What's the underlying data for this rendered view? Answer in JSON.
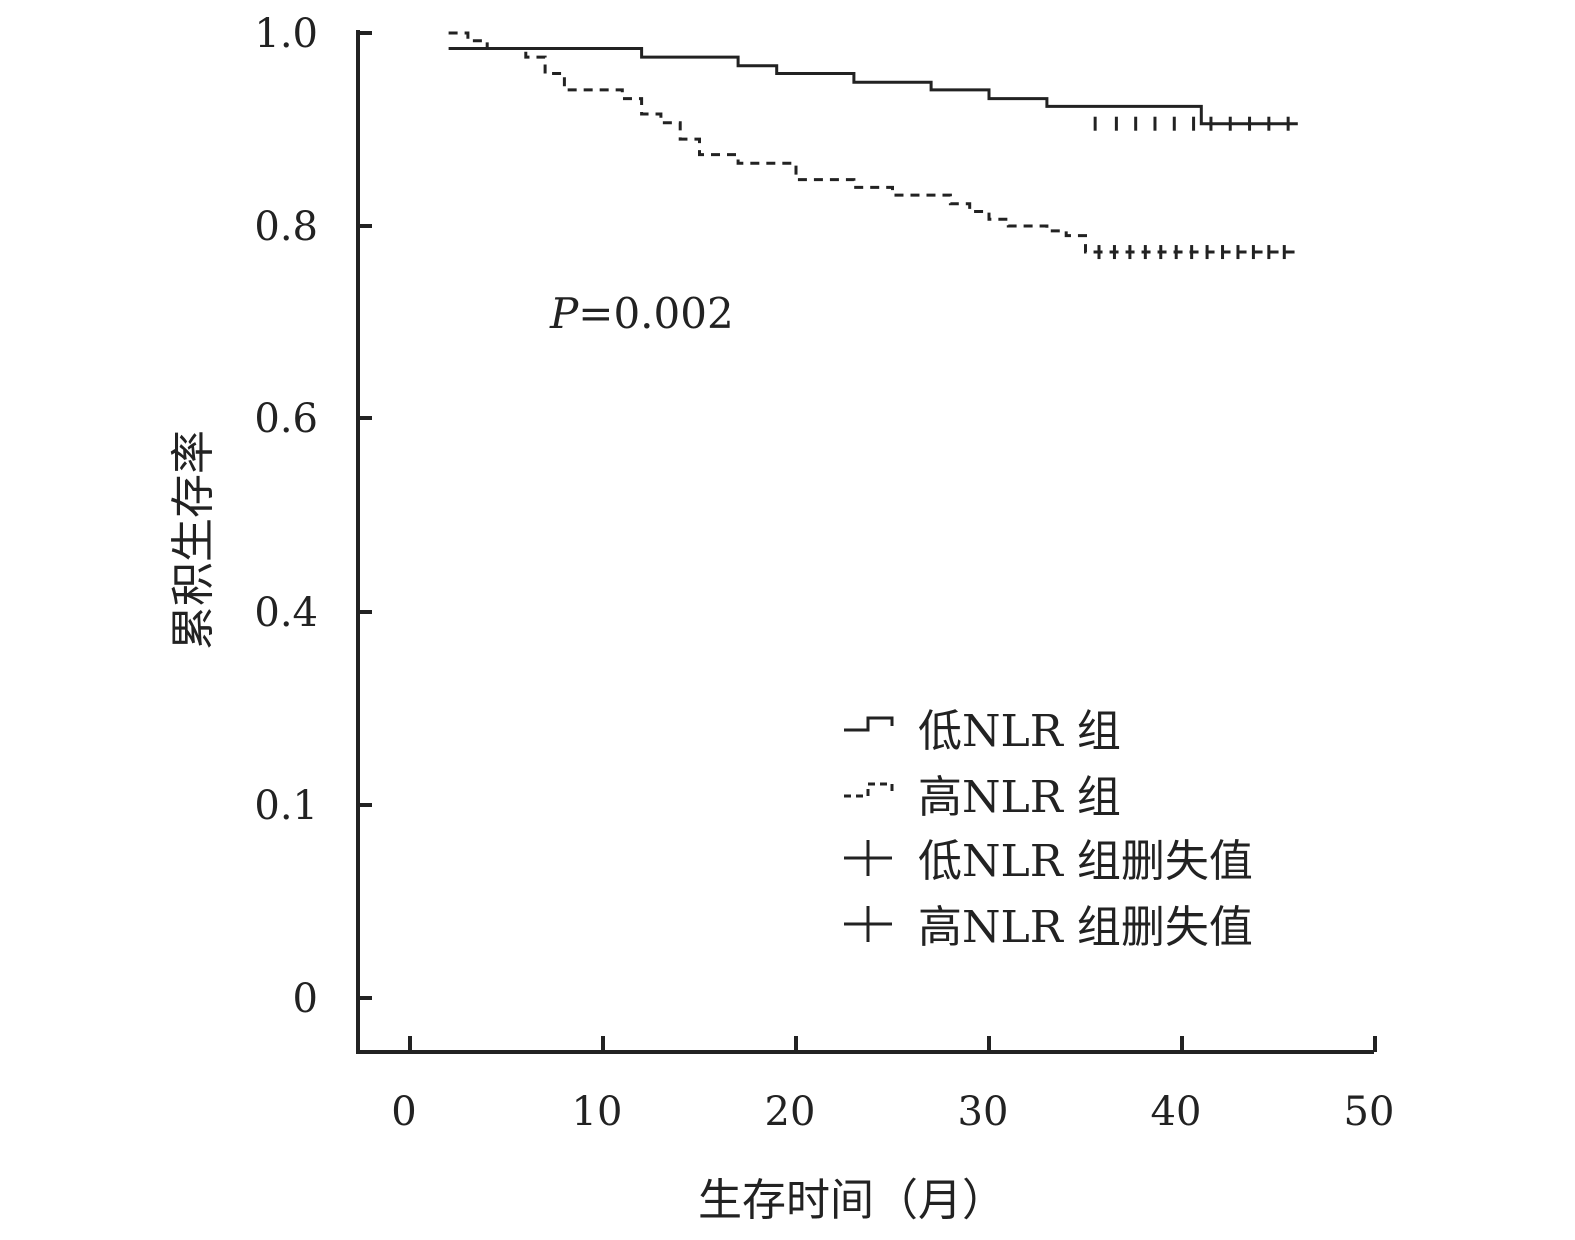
{
  "chart_data": {
    "type": "line",
    "title": "",
    "xlabel": "生存时间（月）",
    "ylabel": "累积生存率",
    "xlim": [
      0,
      50
    ],
    "ylim": [
      0,
      1.0
    ],
    "x_ticks": [
      0,
      10,
      20,
      30,
      40,
      50
    ],
    "x_tick_labels": [
      "0",
      "10",
      "20",
      "30",
      "40",
      "50"
    ],
    "y_ticks": [
      0,
      0.1,
      0.4,
      0.6,
      0.8,
      1.0
    ],
    "y_tick_labels": [
      "0",
      "0.1",
      "0.4",
      "0.6",
      "0.8",
      "1.0"
    ],
    "y_tick_label_note": "",
    "grid": false,
    "legend_position": "lower-right",
    "annotation": {
      "p_label": "P",
      "p_value": "=0.002"
    },
    "series": [
      {
        "name": "低NLR 组",
        "line_style": "solid",
        "steps": [
          [
            2,
            0.984
          ],
          [
            12,
            0.975
          ],
          [
            17,
            0.966
          ],
          [
            19,
            0.958
          ],
          [
            23,
            0.949
          ],
          [
            27,
            0.941
          ],
          [
            30,
            0.932
          ],
          [
            33,
            0.924
          ],
          [
            41,
            0.906
          ],
          [
            46,
            0.906
          ]
        ],
        "censored_label": "低NLR 组删失值",
        "censored": [
          35.5,
          36.6,
          37.6,
          38.6,
          39.6,
          40.6,
          41.5,
          42.5,
          43.5,
          44.5,
          45.5
        ]
      },
      {
        "name": "高NLR 组",
        "line_style": "dashed",
        "steps": [
          [
            2,
            1.0
          ],
          [
            3,
            0.992
          ],
          [
            4,
            0.984
          ],
          [
            6,
            0.975
          ],
          [
            7,
            0.958
          ],
          [
            8,
            0.941
          ],
          [
            11,
            0.932
          ],
          [
            12,
            0.916
          ],
          [
            13,
            0.907
          ],
          [
            14,
            0.89
          ],
          [
            15,
            0.874
          ],
          [
            17,
            0.865
          ],
          [
            20,
            0.848
          ],
          [
            23,
            0.84
          ],
          [
            25,
            0.832
          ],
          [
            28,
            0.823
          ],
          [
            29,
            0.815
          ],
          [
            30,
            0.807
          ],
          [
            31,
            0.8
          ],
          [
            33,
            0.795
          ],
          [
            34,
            0.79
          ],
          [
            35,
            0.773
          ],
          [
            46,
            0.773
          ]
        ],
        "censored_label": "高NLR 组删失值",
        "censored": [
          35.7,
          36.5,
          37.3,
          38.1,
          38.9,
          39.7,
          40.5,
          41.3,
          42.1,
          42.9,
          43.7,
          44.5,
          45.3
        ]
      }
    ]
  }
}
